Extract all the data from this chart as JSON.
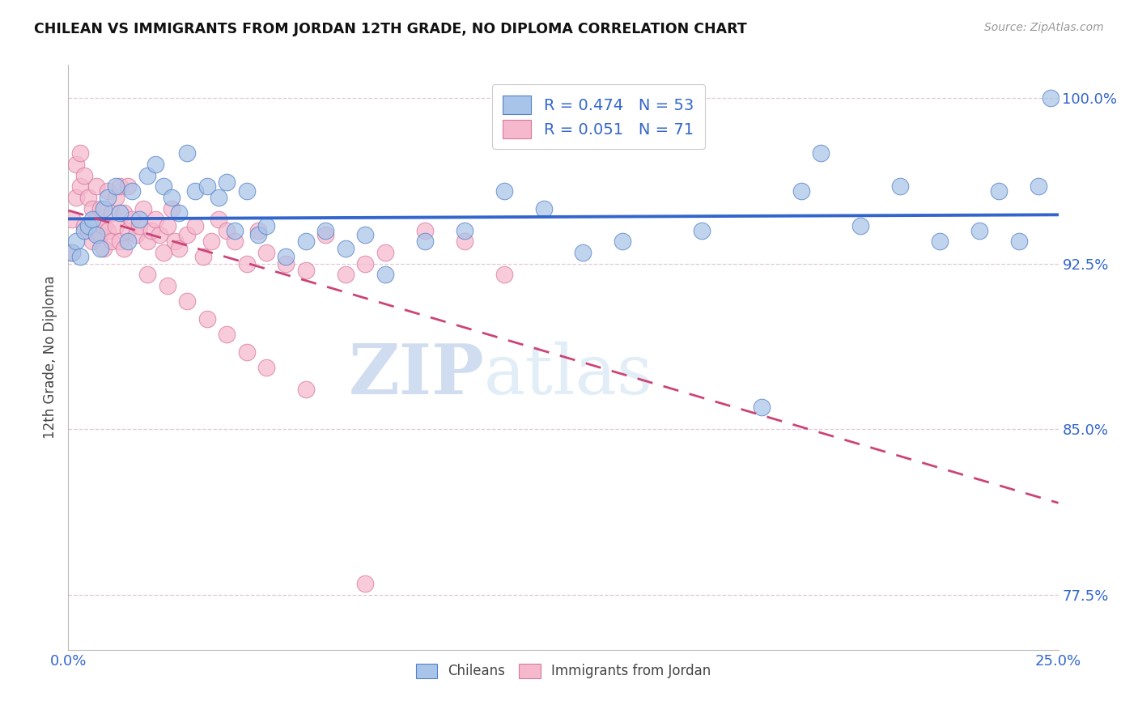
{
  "title": "CHILEAN VS IMMIGRANTS FROM JORDAN 12TH GRADE, NO DIPLOMA CORRELATION CHART",
  "source": "Source: ZipAtlas.com",
  "ylabel": "12th Grade, No Diploma",
  "x_min": 0.0,
  "x_max": 0.25,
  "y_min": 0.75,
  "y_max": 1.015,
  "x_ticks": [
    0.0,
    0.05,
    0.1,
    0.15,
    0.2,
    0.25
  ],
  "x_tick_labels": [
    "0.0%",
    "",
    "",
    "",
    "",
    "25.0%"
  ],
  "y_ticks": [
    0.775,
    0.85,
    0.925,
    1.0
  ],
  "y_tick_labels": [
    "77.5%",
    "85.0%",
    "92.5%",
    "100.0%"
  ],
  "legend_r1": "R = 0.474",
  "legend_n1": "N = 53",
  "legend_r2": "R = 0.051",
  "legend_n2": "N = 71",
  "chilean_color": "#a8c4e8",
  "chilean_edge": "#5580c8",
  "jordan_color": "#f5b8cc",
  "jordan_edge": "#d878a0",
  "trend_blue": "#3366cc",
  "trend_pink": "#cc4477",
  "watermark_zip": "ZIP",
  "watermark_atlas": "atlas",
  "chilean_x": [
    0.001,
    0.002,
    0.003,
    0.004,
    0.005,
    0.006,
    0.007,
    0.008,
    0.009,
    0.01,
    0.012,
    0.013,
    0.015,
    0.016,
    0.018,
    0.02,
    0.022,
    0.024,
    0.026,
    0.028,
    0.03,
    0.032,
    0.035,
    0.038,
    0.04,
    0.042,
    0.045,
    0.048,
    0.05,
    0.055,
    0.06,
    0.065,
    0.07,
    0.075,
    0.08,
    0.09,
    0.1,
    0.11,
    0.12,
    0.13,
    0.14,
    0.16,
    0.175,
    0.185,
    0.19,
    0.2,
    0.21,
    0.22,
    0.23,
    0.235,
    0.24,
    0.245,
    0.248
  ],
  "chilean_y": [
    0.93,
    0.935,
    0.928,
    0.94,
    0.942,
    0.945,
    0.938,
    0.932,
    0.95,
    0.955,
    0.96,
    0.948,
    0.935,
    0.958,
    0.945,
    0.965,
    0.97,
    0.96,
    0.955,
    0.948,
    0.975,
    0.958,
    0.96,
    0.955,
    0.962,
    0.94,
    0.958,
    0.938,
    0.942,
    0.928,
    0.935,
    0.94,
    0.932,
    0.938,
    0.92,
    0.935,
    0.94,
    0.958,
    0.95,
    0.93,
    0.935,
    0.94,
    0.86,
    0.958,
    0.975,
    0.942,
    0.96,
    0.935,
    0.94,
    0.958,
    0.935,
    0.96,
    1.0
  ],
  "jordan_x": [
    0.001,
    0.001,
    0.002,
    0.002,
    0.003,
    0.003,
    0.004,
    0.004,
    0.005,
    0.005,
    0.006,
    0.006,
    0.007,
    0.007,
    0.008,
    0.008,
    0.009,
    0.009,
    0.01,
    0.01,
    0.011,
    0.011,
    0.012,
    0.012,
    0.013,
    0.013,
    0.014,
    0.014,
    0.015,
    0.015,
    0.016,
    0.017,
    0.018,
    0.019,
    0.02,
    0.021,
    0.022,
    0.023,
    0.024,
    0.025,
    0.026,
    0.027,
    0.028,
    0.03,
    0.032,
    0.034,
    0.036,
    0.038,
    0.04,
    0.042,
    0.045,
    0.048,
    0.05,
    0.055,
    0.06,
    0.065,
    0.07,
    0.075,
    0.08,
    0.09,
    0.1,
    0.11,
    0.02,
    0.025,
    0.03,
    0.035,
    0.04,
    0.045,
    0.05,
    0.06,
    0.075
  ],
  "jordan_y": [
    0.93,
    0.945,
    0.97,
    0.955,
    0.975,
    0.96,
    0.965,
    0.942,
    0.955,
    0.94,
    0.95,
    0.935,
    0.96,
    0.945,
    0.938,
    0.95,
    0.942,
    0.932,
    0.958,
    0.94,
    0.948,
    0.935,
    0.955,
    0.942,
    0.96,
    0.935,
    0.948,
    0.932,
    0.94,
    0.96,
    0.945,
    0.938,
    0.942,
    0.95,
    0.935,
    0.94,
    0.945,
    0.938,
    0.93,
    0.942,
    0.95,
    0.935,
    0.932,
    0.938,
    0.942,
    0.928,
    0.935,
    0.945,
    0.94,
    0.935,
    0.925,
    0.94,
    0.93,
    0.925,
    0.922,
    0.938,
    0.92,
    0.925,
    0.93,
    0.94,
    0.935,
    0.92,
    0.92,
    0.915,
    0.908,
    0.9,
    0.893,
    0.885,
    0.878,
    0.868,
    0.78
  ]
}
